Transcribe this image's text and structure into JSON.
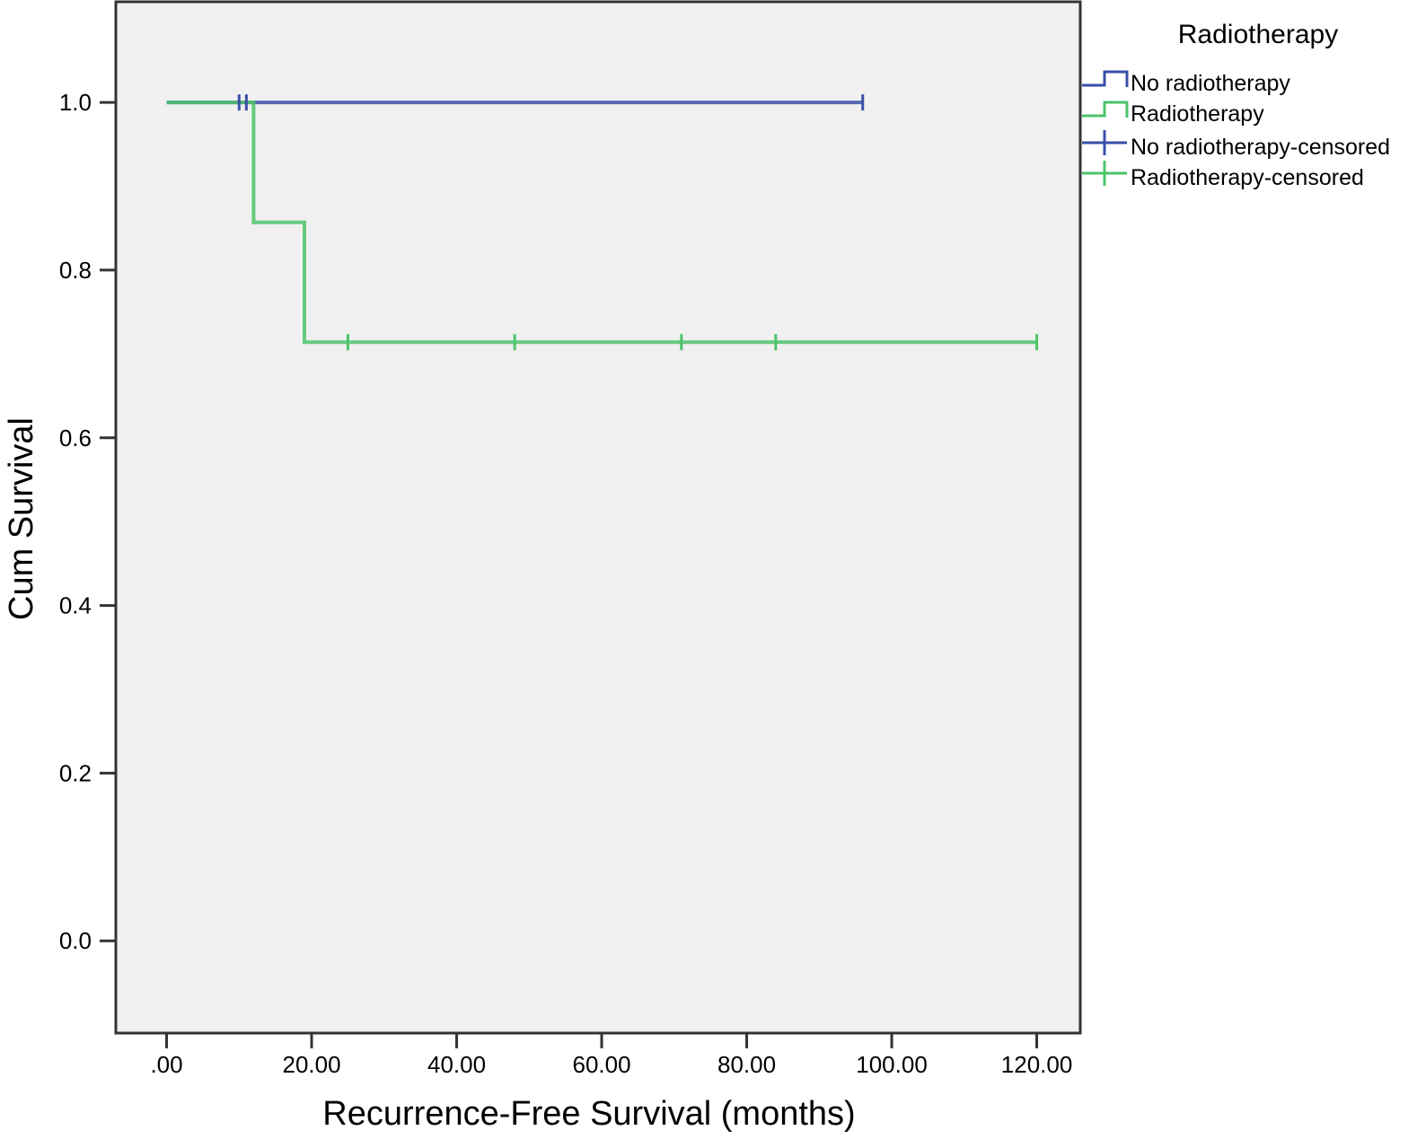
{
  "chart_data": {
    "type": "line",
    "subtype": "kaplan-meier-step",
    "title": "",
    "xlabel": "Recurrence-Free Survival (months)",
    "ylabel": "Cum Survival",
    "xlim": [
      -7,
      126
    ],
    "ylim": [
      -0.11,
      1.12
    ],
    "x_ticks": [
      0,
      20,
      40,
      60,
      80,
      100,
      120
    ],
    "x_tick_labels": [
      ".00",
      "20.00",
      "40.00",
      "60.00",
      "80.00",
      "100.00",
      "120.00"
    ],
    "y_ticks": [
      0,
      0.2,
      0.4,
      0.6,
      0.8,
      1.0
    ],
    "y_tick_labels": [
      "0.0",
      "0.2",
      "0.4",
      "0.6",
      "0.8",
      "1.0"
    ],
    "grid": false,
    "plot_background": "#f0f0f0",
    "legend": {
      "title": "Radiotherapy",
      "placement": "right",
      "entries": [
        {
          "label": "No radiotherapy",
          "kind": "step",
          "color": "#3a4fa8"
        },
        {
          "label": "Radiotherapy",
          "kind": "step",
          "color": "#4cc36a"
        },
        {
          "label": "No radiotherapy-censored",
          "kind": "censor",
          "color": "#3a4fa8"
        },
        {
          "label": "Radiotherapy-censored",
          "kind": "censor",
          "color": "#4cc36a"
        }
      ]
    },
    "series": [
      {
        "name": "No radiotherapy",
        "color": "#3a4fa8",
        "steps": [
          [
            0,
            1.0
          ],
          [
            96,
            1.0
          ]
        ],
        "censored": [
          [
            10,
            1.0
          ],
          [
            11,
            1.0
          ],
          [
            96,
            1.0
          ]
        ]
      },
      {
        "name": "Radiotherapy",
        "color": "#4cc36a",
        "steps": [
          [
            0,
            1.0
          ],
          [
            12,
            1.0
          ],
          [
            12,
            0.857
          ],
          [
            19,
            0.857
          ],
          [
            19,
            0.714
          ],
          [
            120,
            0.714
          ]
        ],
        "censored": [
          [
            25,
            0.714
          ],
          [
            48,
            0.714
          ],
          [
            71,
            0.714
          ],
          [
            84,
            0.714
          ],
          [
            120,
            0.714
          ]
        ]
      }
    ]
  }
}
